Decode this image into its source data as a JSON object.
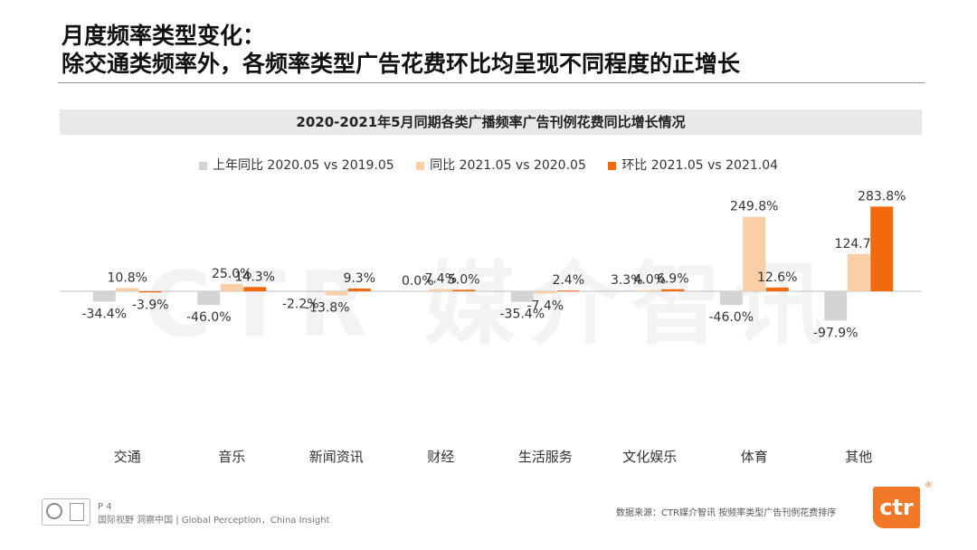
{
  "header": {
    "line1": "月度频率类型变化：",
    "line2": "除交通类频率外，各频率类型广告花费环比均呈现不同程度的正增长"
  },
  "watermark": "CTR 媒介智讯",
  "colors": {
    "gray": "#d4d4d4",
    "peach": "#fbcfa5",
    "orange": "#f06a0e"
  },
  "chart_data": {
    "type": "bar",
    "title": "2020-2021年5月同期各类广播频率广告刊例花费同比增长情况",
    "categories": [
      "交通",
      "音乐",
      "新闻资讯",
      "财经",
      "生活服务",
      "文化娱乐",
      "体育",
      "其他"
    ],
    "series": [
      {
        "name": "上年同比 2020.05 vs 2019.05",
        "color": "#d4d4d4",
        "values": [
          -34.4,
          -46.0,
          -2.2,
          0.0,
          -35.4,
          3.3,
          -46.0,
          -97.9
        ],
        "labels": [
          "-34.4%",
          "-46.0%",
          "-2.2%",
          "0.0%",
          "-35.4%",
          "3.3%",
          "-46.0%",
          "-97.9%"
        ]
      },
      {
        "name": "同比 2021.05 vs 2020.05",
        "color": "#fbcfa5",
        "values": [
          10.8,
          25.0,
          -13.8,
          7.4,
          -7.4,
          4.0,
          249.8,
          124.7
        ],
        "labels": [
          "10.8%",
          "25.0%",
          "-13.8%",
          "7.4%",
          "-7.4%",
          "4.0%",
          "249.8%",
          "124.7%"
        ]
      },
      {
        "name": "环比 2021.05 vs 2021.04",
        "color": "#f06a0e",
        "values": [
          -3.9,
          14.3,
          9.3,
          5.0,
          2.4,
          6.9,
          12.6,
          283.8
        ],
        "labels": [
          "-3.9%",
          "14.3%",
          "9.3%",
          "5.0%",
          "2.4%",
          "6.9%",
          "12.6%",
          "283.8%"
        ]
      }
    ],
    "ylim": [
      -100,
      290
    ],
    "legend_position": "top",
    "grid": false
  },
  "footer": {
    "page": "P 4",
    "slogan": "国际视野  洞察中国 | Global Perception，China Insight",
    "source": "数据来源：CTR媒介智讯  按频率类型广告刊例花费排序",
    "logo": "ctr",
    "reg": "®"
  }
}
